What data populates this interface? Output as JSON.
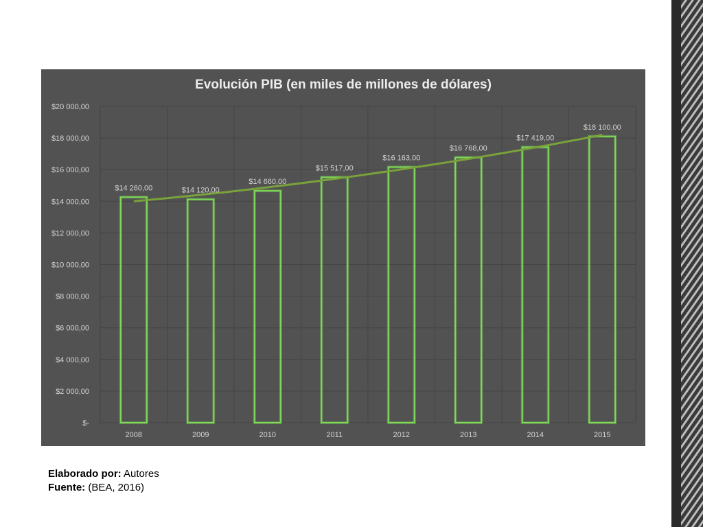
{
  "chart_data": {
    "type": "bar",
    "title": "Evolución PIB (en miles de millones de dólares)",
    "categories": [
      "2008",
      "2009",
      "2010",
      "2011",
      "2012",
      "2013",
      "2014",
      "2015"
    ],
    "values": [
      14260,
      14120,
      14660,
      15517,
      16163,
      16768,
      17419,
      18100
    ],
    "data_labels": [
      "$14 260,00",
      "$14 120,00",
      "$14 660,00",
      "$15 517,00",
      "$16 163,00",
      "$16 768,00",
      "$17 419,00",
      "$18 100,00"
    ],
    "y_ticks": [
      {
        "value": 0,
        "label": "$-"
      },
      {
        "value": 2000,
        "label": "$2 000,00"
      },
      {
        "value": 4000,
        "label": "$4 000,00"
      },
      {
        "value": 6000,
        "label": "$6 000,00"
      },
      {
        "value": 8000,
        "label": "$8 000,00"
      },
      {
        "value": 10000,
        "label": "$10 000,00"
      },
      {
        "value": 12000,
        "label": "$12 000,00"
      },
      {
        "value": 14000,
        "label": "$14 000,00"
      },
      {
        "value": 16000,
        "label": "$16 000,00"
      },
      {
        "value": 18000,
        "label": "$18 000,00"
      },
      {
        "value": 20000,
        "label": "$20 000,00"
      }
    ],
    "ylim": [
      0,
      20000
    ],
    "trendline": true,
    "grid": true,
    "legend": "none",
    "colors": {
      "background": "#525252",
      "bar_outline": "#7ed957",
      "trend": "#7aa23a",
      "text": "#d4d4d4",
      "grid": "#444444"
    }
  },
  "footer": {
    "made_by_label": "Elaborado por:",
    "made_by_value": " Autores",
    "source_label": "Fuente:",
    "source_value": " (BEA, 2016)"
  }
}
